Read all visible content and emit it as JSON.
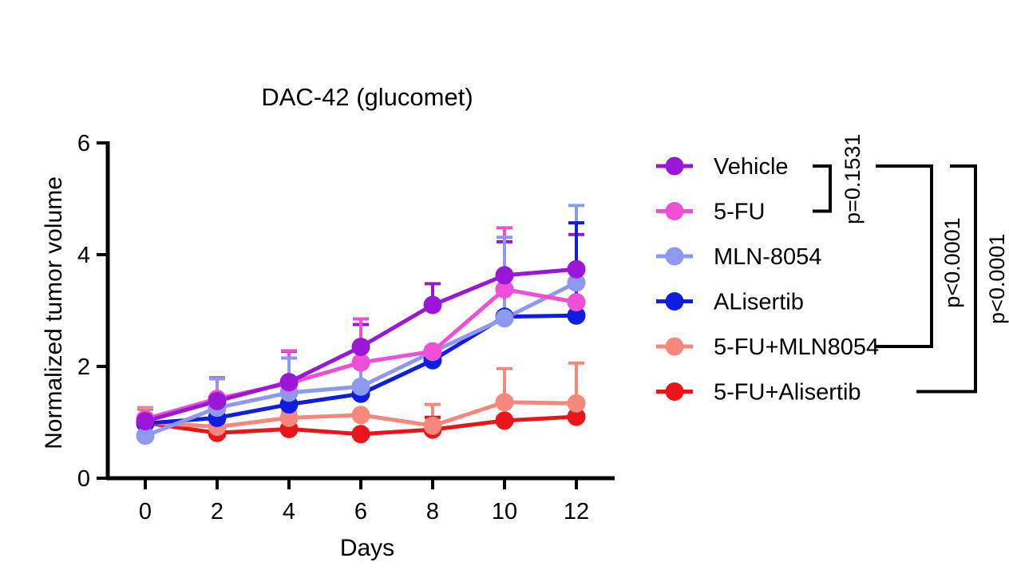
{
  "chart_data": {
    "type": "line",
    "title": "DAC-42 (glucomet)",
    "xlabel": "Days",
    "ylabel": "Normalized tumor volume",
    "x": [
      0,
      2,
      4,
      6,
      8,
      10,
      12
    ],
    "xticks": [
      "0",
      "2",
      "4",
      "6",
      "8",
      "10",
      "12"
    ],
    "yticks": [
      "0",
      "2",
      "4",
      "6"
    ],
    "xlim": [
      -1,
      13.5
    ],
    "ylim": [
      0,
      6
    ],
    "grid": false,
    "legend_position": "right",
    "series": [
      {
        "name": "Vehicle",
        "color": "#9b17d6",
        "values": [
          1.02,
          1.38,
          1.72,
          2.35,
          3.1,
          3.63,
          3.74
        ],
        "error": [
          0.22,
          0.4,
          0.55,
          0.4,
          0.38,
          0.6,
          0.62
        ]
      },
      {
        "name": "5-FU",
        "color": "#ee4fd6",
        "values": [
          1.06,
          1.42,
          1.7,
          2.07,
          2.27,
          3.38,
          3.15
        ],
        "error": [
          0.2,
          0.38,
          0.58,
          0.78,
          0.0,
          1.1,
          0.0
        ]
      },
      {
        "name": "MLN-8054",
        "color": "#8d98ee",
        "values": [
          0.76,
          1.26,
          1.53,
          1.64,
          2.26,
          2.86,
          3.5
        ],
        "error": [
          0.5,
          0.52,
          0.62,
          0.5,
          0.08,
          1.45,
          1.38
        ]
      },
      {
        "name": "ALisertib",
        "color": "#0f1de0",
        "values": [
          0.98,
          1.08,
          1.32,
          1.51,
          2.11,
          2.89,
          2.91
        ],
        "error": [
          0.12,
          0.22,
          0.2,
          0.18,
          0.05,
          0.0,
          1.66
        ]
      },
      {
        "name": "5-FU+MLN8054",
        "color": "#f5877c",
        "values": [
          1.0,
          0.92,
          1.08,
          1.13,
          0.94,
          1.36,
          1.34
        ],
        "error": [
          0.25,
          0.05,
          0.1,
          0.0,
          0.38,
          0.6,
          0.72
        ]
      },
      {
        "name": "5-FU+Alisertib",
        "color": "#e8151a",
        "values": [
          0.99,
          0.81,
          0.88,
          0.79,
          0.87,
          1.03,
          1.1
        ],
        "error": [
          0.05,
          0.0,
          0.0,
          0.0,
          0.22,
          0.0,
          0.0
        ]
      }
    ],
    "annotations": [
      {
        "label": "p=0.1531",
        "from": "Vehicle",
        "to": "5-FU"
      },
      {
        "label": "p<0.0001",
        "from": "Vehicle",
        "to": "5-FU+MLN8054"
      },
      {
        "label": "p<0.0001",
        "from": "Vehicle",
        "to": "5-FU+Alisertib"
      }
    ]
  }
}
